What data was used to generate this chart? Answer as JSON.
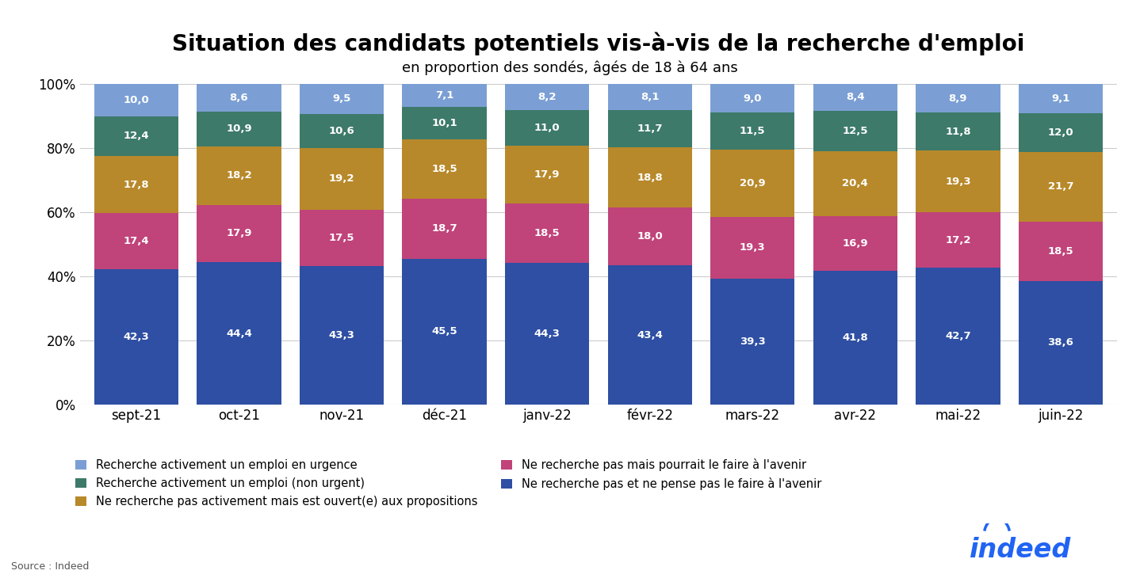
{
  "title": "Situation des candidats potentiels vis-à-vis de la recherche d'emploi",
  "subtitle": "en proportion des sondés, âgés de 18 à 64 ans",
  "categories": [
    "sept-21",
    "oct-21",
    "nov-21",
    "déc-21",
    "janv-22",
    "févr-22",
    "mars-22",
    "avr-22",
    "mai-22",
    "juin-22"
  ],
  "series": [
    {
      "label": "Ne recherche pas et ne pense pas le faire à l'avenir",
      "color": "#2e4fa3",
      "values": [
        42.3,
        44.4,
        43.3,
        45.5,
        44.3,
        43.4,
        39.3,
        41.8,
        42.7,
        38.6
      ]
    },
    {
      "label": "Ne recherche pas mais pourrait le faire à l'avenir",
      "color": "#c0437a",
      "values": [
        17.4,
        17.9,
        17.5,
        18.7,
        18.5,
        18.0,
        19.3,
        16.9,
        17.2,
        18.5
      ]
    },
    {
      "label": "Ne recherche pas activement mais est ouvert(e) aux propositions",
      "color": "#b8892a",
      "values": [
        17.8,
        18.2,
        19.2,
        18.5,
        17.9,
        18.8,
        20.9,
        20.4,
        19.3,
        21.7
      ]
    },
    {
      "label": "Recherche activement un emploi (non urgent)",
      "color": "#3d7a6a",
      "values": [
        12.4,
        10.9,
        10.6,
        10.1,
        11.0,
        11.7,
        11.5,
        12.5,
        11.8,
        12.0
      ]
    },
    {
      "label": "Recherche activement un emploi en urgence",
      "color": "#7b9fd4",
      "values": [
        10.0,
        8.6,
        9.5,
        7.1,
        8.2,
        8.1,
        9.0,
        8.4,
        8.9,
        9.1
      ]
    }
  ],
  "ylabel_values": [
    0,
    20,
    40,
    60,
    80,
    100
  ],
  "ylabel_ticks": [
    "0%",
    "20%",
    "40%",
    "60%",
    "80%",
    "100%"
  ],
  "source": "Source : Indeed",
  "background_color": "#ffffff",
  "title_fontsize": 20,
  "subtitle_fontsize": 13,
  "label_fontsize": 9.5,
  "legend_fontsize": 10.5,
  "tick_fontsize": 12,
  "bar_width": 0.82
}
